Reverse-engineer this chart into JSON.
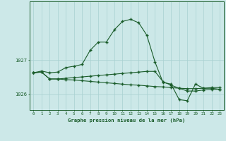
{
  "xlabel": "Graphe pression niveau de la mer (hPa)",
  "x_ticks": [
    0,
    1,
    2,
    3,
    4,
    5,
    6,
    7,
    8,
    9,
    10,
    11,
    12,
    13,
    14,
    15,
    16,
    17,
    18,
    19,
    20,
    21,
    22,
    23
  ],
  "ylim": [
    1025.55,
    1028.7
  ],
  "yticks": [
    1026,
    1027
  ],
  "background_color": "#cce8e8",
  "grid_color": "#a8d0d0",
  "line_color": "#1a5c2a",
  "series1": [
    1026.63,
    1026.68,
    1026.63,
    1026.65,
    1026.78,
    1026.82,
    1026.87,
    1027.28,
    1027.52,
    1027.52,
    1027.88,
    1028.12,
    1028.18,
    1028.08,
    1027.72,
    1026.95,
    1026.35,
    1026.3,
    1025.85,
    1025.82,
    1026.3,
    1026.18,
    1026.18,
    1026.15
  ],
  "series2": [
    1026.63,
    1026.65,
    1026.45,
    1026.45,
    1026.43,
    1026.42,
    1026.4,
    1026.38,
    1026.36,
    1026.34,
    1026.32,
    1026.3,
    1026.28,
    1026.27,
    1026.25,
    1026.23,
    1026.22,
    1026.2,
    1026.18,
    1026.17,
    1026.17,
    1026.18,
    1026.2,
    1026.2
  ],
  "series3": [
    1026.63,
    1026.65,
    1026.45,
    1026.45,
    1026.47,
    1026.49,
    1026.51,
    1026.53,
    1026.55,
    1026.57,
    1026.59,
    1026.61,
    1026.63,
    1026.65,
    1026.67,
    1026.67,
    1026.37,
    1026.27,
    1026.18,
    1026.1,
    1026.1,
    1026.13,
    1026.15,
    1026.15
  ]
}
